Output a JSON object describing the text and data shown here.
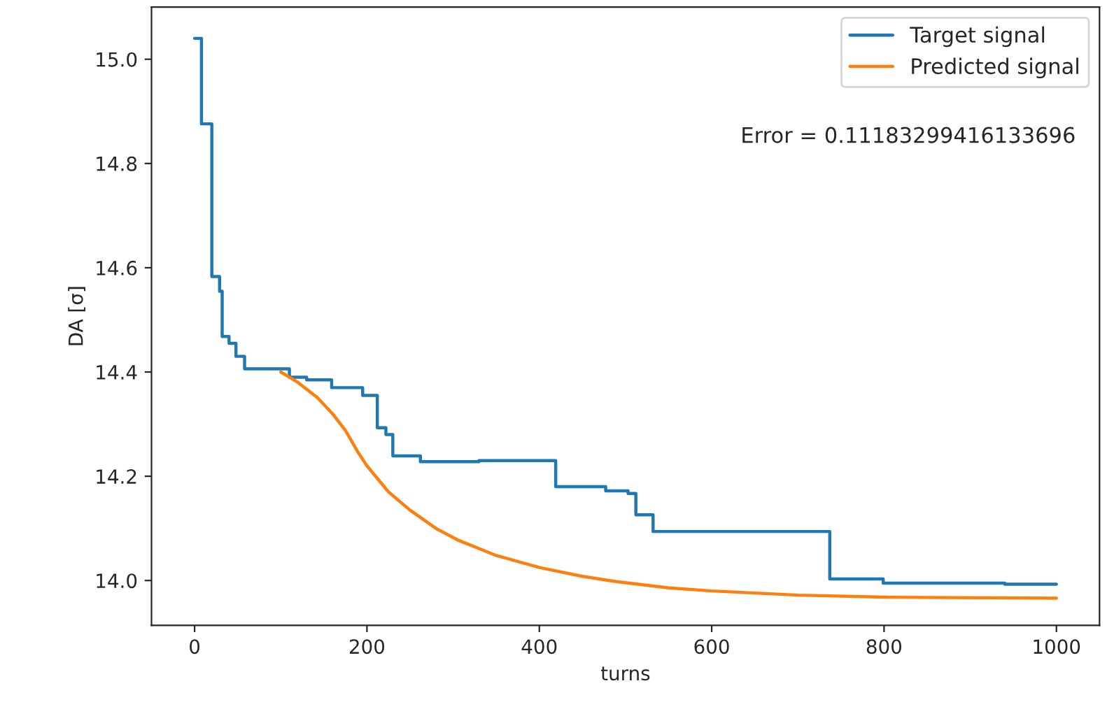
{
  "chart_data": {
    "type": "line",
    "xlabel": "turns",
    "ylabel": "DA [σ]",
    "xlim": [
      -50,
      1050
    ],
    "ylim": [
      13.914,
      15.1
    ],
    "xticks": [
      0,
      200,
      400,
      600,
      800,
      1000
    ],
    "yticks": [
      {
        "value": 14.0,
        "label": "14.0"
      },
      {
        "value": 14.2,
        "label": "14.2"
      },
      {
        "value": 14.4,
        "label": "14.4"
      },
      {
        "value": 14.6,
        "label": "14.6"
      },
      {
        "value": 14.8,
        "label": "14.8"
      },
      {
        "value": 15.0,
        "label": "15.0"
      }
    ],
    "legend": "top right",
    "grid": false,
    "annotations": [
      "Error = 0.11183299416133696"
    ],
    "series": [
      {
        "name": "Target signal",
        "type": "step",
        "color": "#1f77b4",
        "x": [
          0,
          8,
          20,
          29,
          32,
          40,
          48,
          58,
          110,
          130,
          159,
          195,
          212,
          222,
          230,
          262,
          330,
          419,
          477,
          503,
          512,
          532,
          737,
          799,
          940,
          1000
        ],
        "values": [
          15.04,
          14.876,
          14.583,
          14.555,
          14.468,
          14.455,
          14.43,
          14.406,
          14.39,
          14.385,
          14.37,
          14.355,
          14.293,
          14.28,
          14.239,
          14.228,
          14.23,
          14.18,
          14.172,
          14.167,
          14.126,
          14.094,
          14.003,
          13.995,
          13.993,
          13.993
        ]
      },
      {
        "name": "Predicted signal",
        "color": "#ff7f0e",
        "x": [
          100,
          120,
          143,
          160,
          175,
          190,
          200,
          225,
          250,
          280,
          305,
          350,
          400,
          450,
          489,
          550,
          600,
          700,
          800,
          1000
        ],
        "values": [
          14.4,
          14.38,
          14.35,
          14.32,
          14.288,
          14.245,
          14.22,
          14.17,
          14.135,
          14.1,
          14.078,
          14.048,
          14.025,
          14.008,
          13.998,
          13.986,
          13.98,
          13.972,
          13.968,
          13.966
        ]
      }
    ]
  }
}
